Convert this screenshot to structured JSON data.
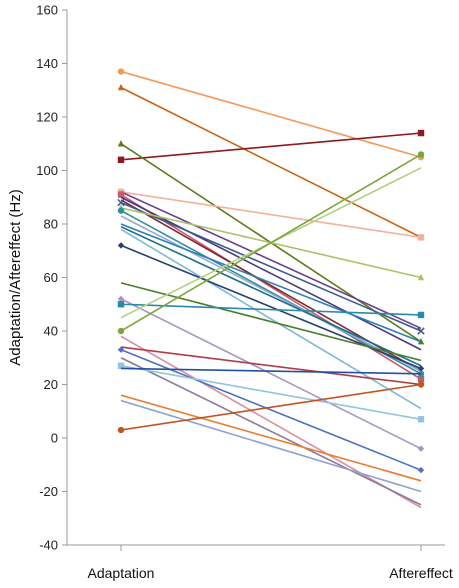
{
  "chart_data": {
    "type": "line",
    "title": "",
    "xlabel": "",
    "ylabel": "Adaptation/Aftereffect (Hz)",
    "categories": [
      "Adaptation",
      "Aftereffect"
    ],
    "ylim": [
      -40,
      160
    ],
    "yticks": [
      -40,
      -20,
      0,
      20,
      40,
      60,
      80,
      100,
      120,
      140,
      160
    ],
    "grid": false,
    "legend": "none",
    "series": [
      {
        "values": [
          137,
          105
        ],
        "color": "#f39a5a",
        "marker": "circle"
      },
      {
        "values": [
          131,
          75
        ],
        "color": "#c96414",
        "marker": "triangle"
      },
      {
        "values": [
          104,
          114
        ],
        "color": "#8c1a1f",
        "marker": "square"
      },
      {
        "values": [
          110,
          36
        ],
        "color": "#5b7a1a",
        "marker": "triangle"
      },
      {
        "values": [
          92,
          75
        ],
        "color": "#f2b19a",
        "marker": "square"
      },
      {
        "values": [
          92,
          41
        ],
        "color": "#6c3f8f",
        "marker": "none"
      },
      {
        "values": [
          91,
          22
        ],
        "color": "#c55a6d",
        "marker": "square"
      },
      {
        "values": [
          90,
          33
        ],
        "color": "#4a3a78",
        "marker": "none"
      },
      {
        "values": [
          89,
          25
        ],
        "color": "#7d2b33",
        "marker": "none"
      },
      {
        "values": [
          88,
          40
        ],
        "color": "#3d5b8c",
        "marker": "x"
      },
      {
        "values": [
          86,
          60
        ],
        "color": "#a7c46a",
        "marker": "triangle"
      },
      {
        "values": [
          85,
          24
        ],
        "color": "#2f8f9c",
        "marker": "circle"
      },
      {
        "values": [
          83,
          25
        ],
        "color": "#9ba6d6",
        "marker": "none"
      },
      {
        "values": [
          80,
          36
        ],
        "color": "#2c7fb8",
        "marker": "none"
      },
      {
        "values": [
          79,
          27
        ],
        "color": "#1b6f86",
        "marker": "none"
      },
      {
        "values": [
          78,
          11
        ],
        "color": "#7fb8d6",
        "marker": "none"
      },
      {
        "values": [
          72,
          26
        ],
        "color": "#25416e",
        "marker": "diamond"
      },
      {
        "values": [
          58,
          29
        ],
        "color": "#4d7e2a",
        "marker": "none"
      },
      {
        "values": [
          52,
          -4
        ],
        "color": "#a796c4",
        "marker": "diamond"
      },
      {
        "values": [
          50,
          46
        ],
        "color": "#2a8aa8",
        "marker": "square"
      },
      {
        "values": [
          45,
          101
        ],
        "color": "#b5cf83",
        "marker": "none"
      },
      {
        "values": [
          40,
          106
        ],
        "color": "#7aa63a",
        "marker": "circle"
      },
      {
        "values": [
          38,
          -26
        ],
        "color": "#d88ea1",
        "marker": "none"
      },
      {
        "values": [
          34,
          20
        ],
        "color": "#b23a44",
        "marker": "none"
      },
      {
        "values": [
          33,
          -12
        ],
        "color": "#5070c0",
        "marker": "diamond"
      },
      {
        "values": [
          30,
          -25
        ],
        "color": "#8a7a98",
        "marker": "none"
      },
      {
        "values": [
          27,
          7
        ],
        "color": "#93c3dc",
        "marker": "square"
      },
      {
        "values": [
          26,
          24
        ],
        "color": "#2350a0",
        "marker": "none"
      },
      {
        "values": [
          16,
          -16
        ],
        "color": "#ea7b2a",
        "marker": "none"
      },
      {
        "values": [
          14,
          -20
        ],
        "color": "#8fa2cc",
        "marker": "none"
      },
      {
        "values": [
          3,
          20
        ],
        "color": "#c0561e",
        "marker": "circle"
      }
    ]
  }
}
